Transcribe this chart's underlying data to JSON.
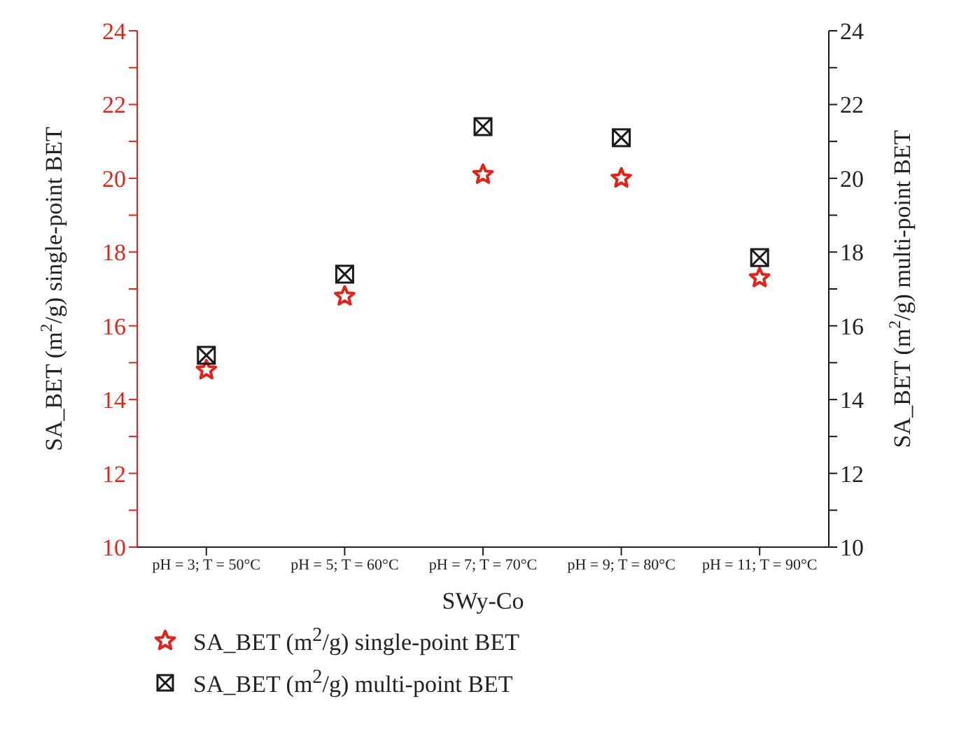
{
  "chart_data": {
    "type": "scatter",
    "xlabel": "SWy-Co",
    "ylabel": "SA_BET (m$^{2}$/g) single-point BET",
    "y2label": "SA_BET (m$^{2}$/g) multi-point BET",
    "categories": [
      "pH = 3; T = 50°C",
      "pH = 5; T = 60°C",
      "pH = 7; T = 70°C",
      "pH = 9; T = 80°C",
      "pH = 11; T = 90°C"
    ],
    "series": [
      {
        "name": "SA_BET (m$^{2}$/g) single-point BET",
        "color": "#e2231a",
        "marker": "star",
        "values": [
          14.8,
          16.8,
          20.1,
          20.0,
          17.3
        ]
      },
      {
        "name": "SA_BET (m$^{2}$/g) multi-point BET",
        "color": "#1a1a1a",
        "marker": "square",
        "values": [
          15.2,
          17.4,
          21.4,
          21.1,
          17.85
        ]
      }
    ],
    "ylim": [
      10,
      24
    ],
    "yticks": [
      10,
      {
        "value": 11,
        "label": null
      },
      12,
      {
        "value": 13,
        "label": null
      },
      14,
      {
        "value": 15,
        "label": null
      },
      16,
      {
        "value": 17,
        "label": null
      },
      18,
      {
        "value": 19,
        "label": null
      },
      20,
      {
        "value": 21,
        "label": null
      },
      22,
      {
        "value": 23,
        "label": null
      },
      24
    ],
    "y2lim": [
      10,
      24
    ],
    "y2ticks": [
      10,
      {
        "value": 11,
        "label": null
      },
      12,
      {
        "value": 13,
        "label": null
      },
      14,
      {
        "value": 15,
        "label": null
      },
      16,
      {
        "value": 17,
        "label": null
      },
      18,
      {
        "value": 19,
        "label": null
      },
      20,
      {
        "value": 21,
        "label": null
      },
      22,
      {
        "value": 23,
        "label": null
      },
      24
    ],
    "grid": false,
    "legend": "bottom"
  }
}
